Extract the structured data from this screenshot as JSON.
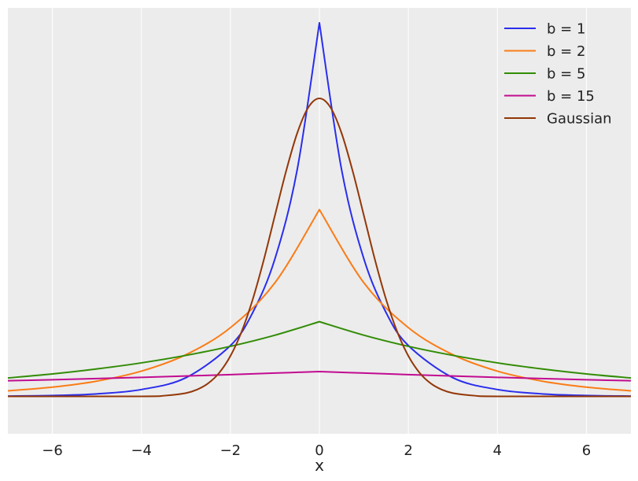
{
  "chart_data": {
    "type": "line",
    "title": "",
    "xlabel": "x",
    "ylabel": "",
    "xlim": [
      -7,
      7
    ],
    "ylim": [
      -0.05,
      0.52
    ],
    "x_ticks": [
      -6,
      -4,
      -2,
      0,
      2,
      4,
      6
    ],
    "x_tick_labels": [
      "−6",
      "−4",
      "−2",
      "0",
      "2",
      "4",
      "6"
    ],
    "y_ticks_shown": false,
    "grid": "vertical",
    "legend": "top-right",
    "background": "#ececec",
    "series": [
      {
        "name": "b = 1",
        "color": "#2a2eec",
        "x": [
          -7,
          -6,
          -5,
          -4,
          -3,
          -2,
          -1.5,
          -1,
          -0.5,
          0,
          0.5,
          1,
          1.5,
          2,
          3,
          4,
          5,
          6,
          7
        ],
        "y": [
          0.0005,
          0.0012,
          0.0034,
          0.0092,
          0.025,
          0.068,
          0.112,
          0.184,
          0.303,
          0.5,
          0.303,
          0.184,
          0.112,
          0.068,
          0.025,
          0.0092,
          0.0034,
          0.0012,
          0.0005
        ]
      },
      {
        "name": "b = 2",
        "color": "#fa7c17",
        "x": [
          -7,
          -6,
          -5,
          -4,
          -3,
          -2,
          -1,
          0,
          1,
          2,
          3,
          4,
          5,
          6,
          7
        ],
        "y": [
          0.0075,
          0.0124,
          0.0205,
          0.0338,
          0.0558,
          0.092,
          0.152,
          0.25,
          0.152,
          0.092,
          0.0558,
          0.0338,
          0.0205,
          0.0124,
          0.0075
        ]
      },
      {
        "name": "b = 5",
        "color": "#328c06",
        "x": [
          -7,
          -6,
          -5,
          -4,
          -3,
          -2,
          -1,
          0,
          1,
          2,
          3,
          4,
          5,
          6,
          7
        ],
        "y": [
          0.0247,
          0.0301,
          0.0368,
          0.0449,
          0.0549,
          0.067,
          0.0819,
          0.1,
          0.0819,
          0.067,
          0.0549,
          0.0449,
          0.0368,
          0.0301,
          0.0247
        ]
      },
      {
        "name": "b = 15",
        "color": "#c10c90",
        "x": [
          -7,
          -6,
          -5,
          -4,
          -3,
          -2,
          -1,
          0,
          1,
          2,
          3,
          4,
          5,
          6,
          7
        ],
        "y": [
          0.021,
          0.0223,
          0.0239,
          0.0255,
          0.0273,
          0.0292,
          0.0312,
          0.0333,
          0.0312,
          0.0292,
          0.0273,
          0.0255,
          0.0239,
          0.0223,
          0.021
        ]
      },
      {
        "name": "Gaussian",
        "color": "#933708",
        "x": [
          -7,
          -4,
          -3.5,
          -3,
          -2.75,
          -2.5,
          -2.25,
          -2,
          -1.75,
          -1.5,
          -1.25,
          -1,
          -0.75,
          -0.5,
          -0.25,
          0,
          0.25,
          0.5,
          0.75,
          1,
          1.25,
          1.5,
          1.75,
          2,
          2.25,
          2.5,
          2.75,
          3,
          3.5,
          4,
          7
        ],
        "y": [
          0,
          0.0001,
          0.0009,
          0.0044,
          0.0091,
          0.0175,
          0.0317,
          0.054,
          0.0863,
          0.1295,
          0.1826,
          0.242,
          0.3011,
          0.3521,
          0.3867,
          0.3989,
          0.3867,
          0.3521,
          0.3011,
          0.242,
          0.1826,
          0.1295,
          0.0863,
          0.054,
          0.0317,
          0.0175,
          0.0091,
          0.0044,
          0.0009,
          0.0001,
          0
        ]
      }
    ]
  }
}
